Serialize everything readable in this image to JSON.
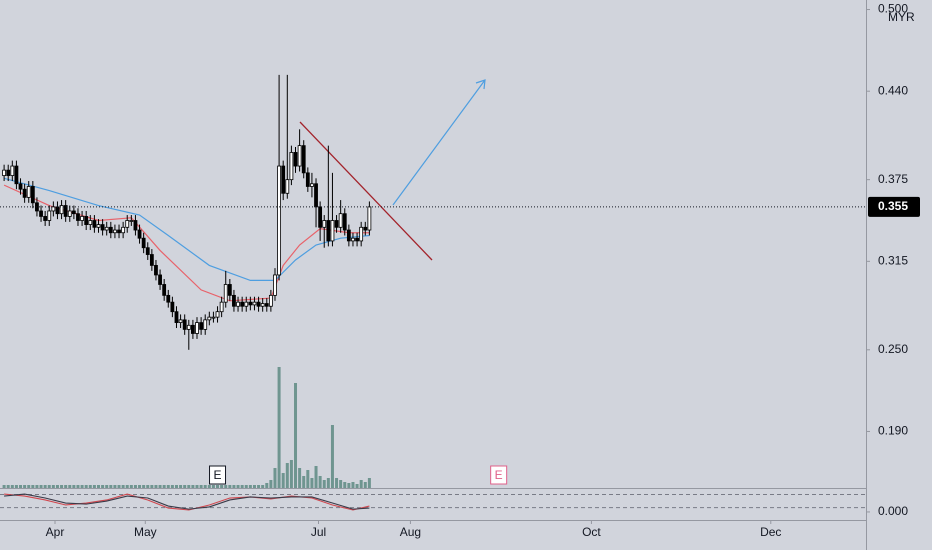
{
  "chart_data": [
    {
      "type": "candlestick",
      "currency": "MYR",
      "last_price": 0.355,
      "up_color": "#ffffff",
      "down_color": "#000000",
      "volume_color": "#6f9590",
      "xlim": [
        -1,
        210
      ],
      "xticks": [
        {
          "value": 12.4,
          "label": "Apr"
        },
        {
          "value": 34.4,
          "label": "May"
        },
        {
          "value": 76.6,
          "label": "Jul"
        },
        {
          "value": 99,
          "label": "Aug"
        },
        {
          "value": 143.1,
          "label": "Oct"
        },
        {
          "value": 186.8,
          "label": "Dec"
        }
      ],
      "ylim": [
        0.147,
        0.507
      ],
      "yticks": [
        {
          "value": 0.5,
          "label": "0.500"
        },
        {
          "value": 0.44,
          "label": "0.440"
        },
        0.375,
        0.315,
        {
          "value": 0.25,
          "label": "0.250"
        },
        {
          "value": 0.19,
          "label": "0.190"
        }
      ],
      "grid": false,
      "x": [
        0,
        1,
        2,
        3,
        4,
        5,
        6,
        7,
        8,
        9,
        10,
        11,
        12,
        13,
        14,
        15,
        16,
        17,
        18,
        19,
        20,
        21,
        22,
        23,
        24,
        25,
        26,
        27,
        28,
        29,
        30,
        31,
        32,
        33,
        34,
        35,
        36,
        37,
        38,
        39,
        40,
        41,
        42,
        43,
        44,
        45,
        46,
        47,
        48,
        49,
        50,
        51,
        52,
        53,
        54,
        55,
        56,
        57,
        58,
        59,
        60,
        61,
        62,
        63,
        64,
        65,
        66,
        67,
        68,
        69,
        70,
        71,
        72,
        73,
        74,
        75,
        76,
        77,
        78,
        79,
        80,
        81,
        82,
        83,
        84,
        85,
        86,
        87,
        88,
        89
      ],
      "open": [
        0.378,
        0.382,
        0.378,
        0.385,
        0.372,
        0.368,
        0.362,
        0.37,
        0.358,
        0.352,
        0.348,
        0.345,
        0.352,
        0.355,
        0.35,
        0.356,
        0.348,
        0.352,
        0.35,
        0.345,
        0.348,
        0.342,
        0.345,
        0.34,
        0.342,
        0.338,
        0.34,
        0.336,
        0.338,
        0.336,
        0.34,
        0.345,
        0.345,
        0.338,
        0.332,
        0.325,
        0.32,
        0.312,
        0.305,
        0.298,
        0.29,
        0.285,
        0.278,
        0.27,
        0.272,
        0.265,
        0.268,
        0.262,
        0.27,
        0.265,
        0.272,
        0.274,
        0.274,
        0.278,
        0.285,
        0.298,
        0.29,
        0.282,
        0.285,
        0.282,
        0.285,
        0.283,
        0.285,
        0.282,
        0.284,
        0.282,
        0.29,
        0.305,
        0.385,
        0.365,
        0.375,
        0.395,
        0.385,
        0.4,
        0.38,
        0.37,
        0.372,
        0.355,
        0.34,
        0.345,
        0.33,
        0.345,
        0.34,
        0.35,
        0.338,
        0.33,
        0.332,
        0.33,
        0.34,
        0.338
      ],
      "high": [
        0.386,
        0.386,
        0.389,
        0.389,
        0.376,
        0.372,
        0.374,
        0.374,
        0.362,
        0.356,
        0.352,
        0.356,
        0.359,
        0.359,
        0.36,
        0.36,
        0.356,
        0.356,
        0.354,
        0.352,
        0.352,
        0.349,
        0.349,
        0.346,
        0.346,
        0.344,
        0.344,
        0.342,
        0.342,
        0.344,
        0.349,
        0.349,
        0.349,
        0.342,
        0.336,
        0.329,
        0.324,
        0.316,
        0.309,
        0.302,
        0.294,
        0.289,
        0.282,
        0.276,
        0.276,
        0.272,
        0.272,
        0.274,
        0.274,
        0.276,
        0.278,
        0.278,
        0.282,
        0.289,
        0.308,
        0.302,
        0.294,
        0.289,
        0.289,
        0.289,
        0.289,
        0.289,
        0.289,
        0.288,
        0.288,
        0.294,
        0.31,
        0.452,
        0.389,
        0.452,
        0.4,
        0.399,
        0.412,
        0.404,
        0.384,
        0.38,
        0.376,
        0.359,
        0.349,
        0.4,
        0.38,
        0.349,
        0.36,
        0.354,
        0.342,
        0.336,
        0.336,
        0.344,
        0.344,
        0.359
      ],
      "low": [
        0.374,
        0.374,
        0.374,
        0.368,
        0.364,
        0.358,
        0.358,
        0.354,
        0.348,
        0.344,
        0.341,
        0.341,
        0.348,
        0.346,
        0.346,
        0.344,
        0.344,
        0.346,
        0.341,
        0.341,
        0.338,
        0.338,
        0.336,
        0.336,
        0.334,
        0.334,
        0.332,
        0.332,
        0.332,
        0.332,
        0.336,
        0.341,
        0.334,
        0.328,
        0.321,
        0.316,
        0.308,
        0.301,
        0.294,
        0.286,
        0.281,
        0.274,
        0.266,
        0.266,
        0.261,
        0.25,
        0.258,
        0.258,
        0.261,
        0.261,
        0.268,
        0.27,
        0.27,
        0.274,
        0.281,
        0.286,
        0.278,
        0.278,
        0.278,
        0.278,
        0.279,
        0.279,
        0.278,
        0.278,
        0.278,
        0.278,
        0.286,
        0.301,
        0.36,
        0.361,
        0.371,
        0.38,
        0.381,
        0.376,
        0.366,
        0.362,
        0.34,
        0.33,
        0.325,
        0.326,
        0.326,
        0.336,
        0.336,
        0.334,
        0.326,
        0.326,
        0.326,
        0.326,
        0.334,
        0.334
      ],
      "close": [
        0.382,
        0.378,
        0.385,
        0.372,
        0.368,
        0.362,
        0.37,
        0.358,
        0.352,
        0.348,
        0.345,
        0.352,
        0.355,
        0.35,
        0.356,
        0.348,
        0.352,
        0.35,
        0.345,
        0.348,
        0.342,
        0.345,
        0.34,
        0.342,
        0.338,
        0.34,
        0.336,
        0.338,
        0.336,
        0.34,
        0.345,
        0.345,
        0.338,
        0.332,
        0.325,
        0.32,
        0.312,
        0.305,
        0.298,
        0.29,
        0.285,
        0.278,
        0.27,
        0.272,
        0.265,
        0.268,
        0.262,
        0.27,
        0.265,
        0.272,
        0.274,
        0.274,
        0.278,
        0.285,
        0.298,
        0.29,
        0.282,
        0.285,
        0.282,
        0.285,
        0.283,
        0.285,
        0.282,
        0.284,
        0.282,
        0.29,
        0.305,
        0.385,
        0.365,
        0.375,
        0.395,
        0.385,
        0.4,
        0.38,
        0.37,
        0.372,
        0.355,
        0.34,
        0.345,
        0.33,
        0.345,
        0.34,
        0.35,
        0.338,
        0.33,
        0.332,
        0.33,
        0.34,
        0.338,
        0.355
      ],
      "volume": [
        3,
        3,
        3,
        3,
        3,
        3,
        3,
        3,
        3,
        3,
        3,
        3,
        3,
        3,
        3,
        3,
        3,
        3,
        3,
        3,
        3,
        3,
        3,
        3,
        3,
        3,
        3,
        3,
        3,
        3,
        3,
        3,
        3,
        3,
        3,
        3,
        3,
        3,
        3,
        3,
        3,
        3,
        3,
        3,
        3,
        3,
        3,
        3,
        3,
        3,
        3,
        3,
        3,
        3,
        3,
        3,
        3,
        3,
        3,
        3,
        3,
        3,
        3,
        3,
        5,
        8,
        20,
        121,
        15,
        25,
        28,
        105,
        20,
        12,
        18,
        10,
        22,
        12,
        8,
        10,
        63,
        10,
        8,
        6,
        5,
        6,
        4,
        8,
        6,
        10
      ],
      "overlays": [
        {
          "color": "#e8626a",
          "x": [
            0,
            11,
            23,
            31,
            38,
            48,
            55,
            65,
            68,
            72,
            77,
            84,
            89
          ],
          "values": [
            0.371,
            0.356,
            0.345,
            0.347,
            0.323,
            0.294,
            0.286,
            0.288,
            0.312,
            0.327,
            0.339,
            0.336,
            0.336
          ]
        },
        {
          "color": "#4e9ee0",
          "x": [
            0,
            11,
            23,
            33,
            40,
            50,
            60,
            66,
            71,
            76,
            82,
            89
          ],
          "values": [
            0.376,
            0.367,
            0.356,
            0.349,
            0.334,
            0.312,
            0.301,
            0.301,
            0.316,
            0.327,
            0.332,
            0.334
          ]
        }
      ],
      "earnings": [
        {
          "x": 52,
          "label": "E"
        },
        {
          "x": 120.5,
          "label": "E"
        }
      ]
    },
    {
      "type": "line",
      "xlim": [
        -1,
        210
      ],
      "ylim": [
        -0.37,
        1.1
      ],
      "yticks": [
        {
          "value": 0,
          "label": "0.000"
        }
      ],
      "levels": [
        0.2,
        0.8
      ],
      "series": [
        {
          "color": "#d0484f",
          "x": [
            0,
            5,
            10,
            15,
            20,
            25,
            30,
            35,
            40,
            45,
            50,
            55,
            60,
            65,
            70,
            75,
            80,
            85,
            89
          ],
          "values": [
            0.82,
            0.73,
            0.55,
            0.32,
            0.41,
            0.55,
            0.82,
            0.55,
            0.18,
            0.09,
            0.32,
            0.64,
            0.69,
            0.6,
            0.73,
            0.64,
            0.32,
            0.09,
            0.27
          ]
        },
        {
          "color": "#3a3a48",
          "x": [
            0,
            5,
            10,
            15,
            20,
            25,
            30,
            35,
            40,
            45,
            50,
            55,
            60,
            65,
            70,
            75,
            80,
            85,
            89
          ],
          "values": [
            0.73,
            0.82,
            0.64,
            0.41,
            0.36,
            0.5,
            0.73,
            0.64,
            0.27,
            0.13,
            0.23,
            0.55,
            0.69,
            0.64,
            0.69,
            0.69,
            0.41,
            0.13,
            0.18
          ]
        }
      ]
    }
  ]
}
